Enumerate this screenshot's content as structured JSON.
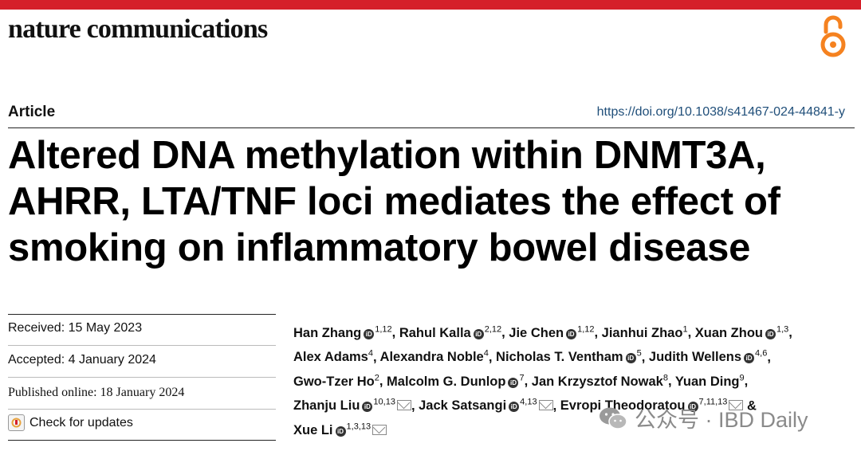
{
  "header": {
    "journal": "nature communications",
    "icons": {
      "open_access": "open-access-icon"
    },
    "accent_color": "#d5202a"
  },
  "article": {
    "type": "Article",
    "doi": "https://doi.org/10.1038/s41467-024-44841-y",
    "title": "Altered DNA methylation within DNMT3A, AHRR, LTA/TNF loci mediates the effect of smoking on inflammatory bowel disease"
  },
  "dates": {
    "received": "Received: 15 May 2023",
    "accepted": "Accepted: 4 January 2024",
    "published": "Published online: 18 January 2024",
    "check_updates": "Check for updates"
  },
  "authors": [
    {
      "name": "Han Zhang",
      "orcid": true,
      "sup": "1,12",
      "mail": false,
      "sep": ", "
    },
    {
      "name": "Rahul Kalla",
      "orcid": true,
      "sup": "2,12",
      "mail": false,
      "sep": ", "
    },
    {
      "name": "Jie Chen",
      "orcid": true,
      "sup": "1,12",
      "mail": false,
      "sep": ", "
    },
    {
      "name": "Jianhui Zhao",
      "orcid": false,
      "sup": "1",
      "mail": false,
      "sep": ", "
    },
    {
      "name": "Xuan Zhou",
      "orcid": true,
      "sup": "1,3",
      "mail": false,
      "sep": ", "
    },
    {
      "name": "Alex Adams",
      "orcid": false,
      "sup": "4",
      "mail": false,
      "sep": ", "
    },
    {
      "name": "Alexandra Noble",
      "orcid": false,
      "sup": "4",
      "mail": false,
      "sep": ", "
    },
    {
      "name": "Nicholas T. Ventham",
      "orcid": true,
      "sup": "5",
      "mail": false,
      "sep": ", "
    },
    {
      "name": "Judith Wellens",
      "orcid": true,
      "sup": "4,6",
      "mail": false,
      "sep": ", "
    },
    {
      "name": "Gwo-Tzer Ho",
      "orcid": false,
      "sup": "2",
      "mail": false,
      "sep": ", "
    },
    {
      "name": "Malcolm G. Dunlop",
      "orcid": true,
      "sup": "7",
      "mail": false,
      "sep": ", "
    },
    {
      "name": "Jan Krzysztof Nowak",
      "orcid": false,
      "sup": "8",
      "mail": false,
      "sep": ", "
    },
    {
      "name": "Yuan Ding",
      "orcid": false,
      "sup": "9",
      "mail": false,
      "sep": ", "
    },
    {
      "name": "Zhanju Liu",
      "orcid": true,
      "sup": "10,13",
      "mail": true,
      "sep": ", "
    },
    {
      "name": "Jack Satsangi",
      "orcid": true,
      "sup": "4,13",
      "mail": true,
      "sep": ", "
    },
    {
      "name": "Evropi Theodoratou",
      "orcid": true,
      "sup": "7,11,13",
      "mail": true,
      "sep": " & "
    },
    {
      "name": "Xue Li",
      "orcid": true,
      "sup": "1,3,13",
      "mail": true,
      "sep": ""
    }
  ],
  "watermark": {
    "text": "公众号 · IBD Daily",
    "icon": "wechat-icon"
  }
}
